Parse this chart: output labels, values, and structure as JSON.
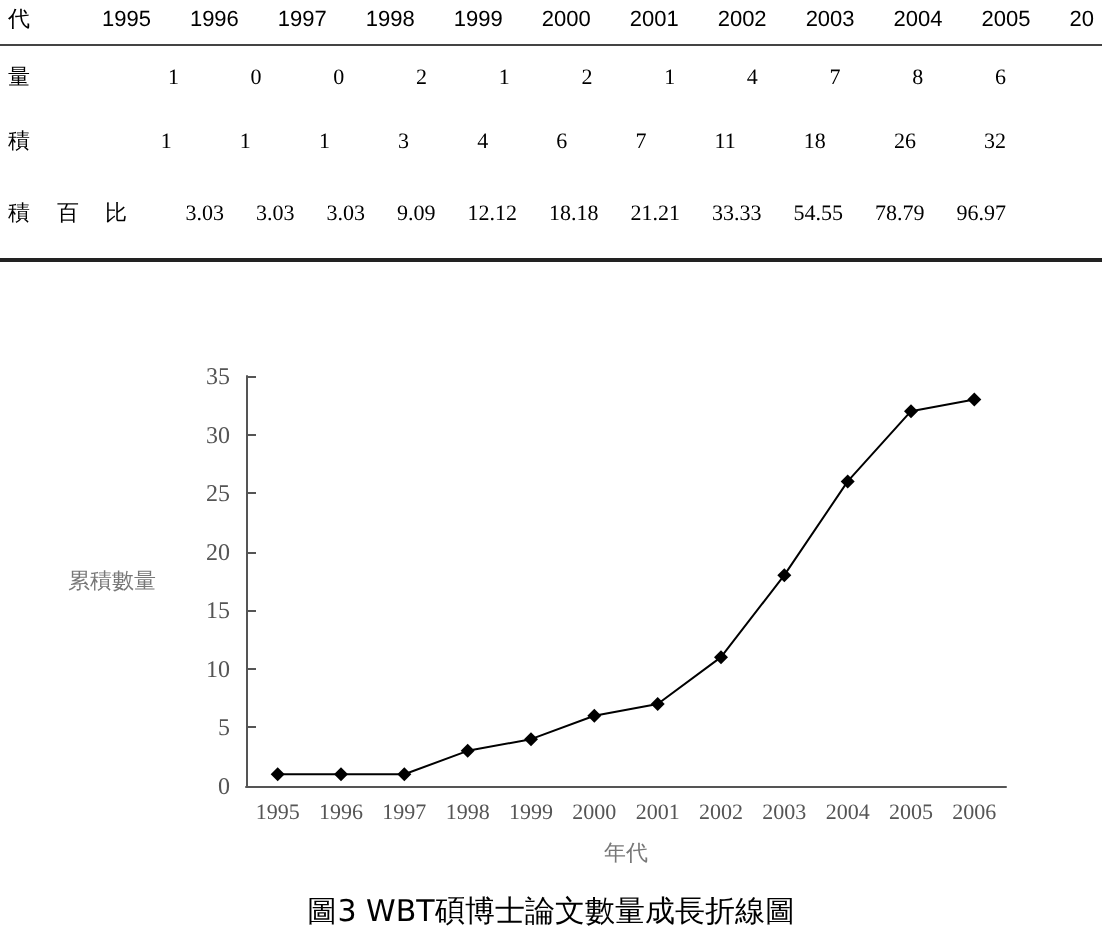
{
  "chart_data": [
    {
      "type": "other",
      "annotations": [
        "代 1995 1996 1997 1998 1999 2000 2001 2002 2003 2004 2005 20",
        "量 1 0 0 2 1 2 1 4 7 8 6",
        "積 1 1 1 3 4 6 7 11 18 26 32",
        "積百比 3.03 3.03 3.03 9.09 12.12 18.18 21.21 33.33 54.55 78.79 96.97"
      ]
    },
    {
      "type": "line",
      "title": "圖3 WBT碩博士論文數量成長折線圖",
      "xlabel": "年代",
      "ylabel": "累積數量",
      "categories": [
        "1995",
        "1996",
        "1997",
        "1998",
        "1999",
        "2000",
        "2001",
        "2002",
        "2003",
        "2004",
        "2005",
        "2006"
      ],
      "series": [
        {
          "color": "#000000",
          "values": [
            1,
            1,
            1,
            3,
            4,
            6,
            7,
            11,
            18,
            26,
            32,
            33
          ]
        }
      ],
      "ylim": [
        0,
        35
      ],
      "yticks": [
        0,
        5,
        10,
        15,
        20,
        25,
        30,
        35
      ],
      "grid": false,
      "marker": "diamond",
      "line_style": "solid"
    }
  ]
}
